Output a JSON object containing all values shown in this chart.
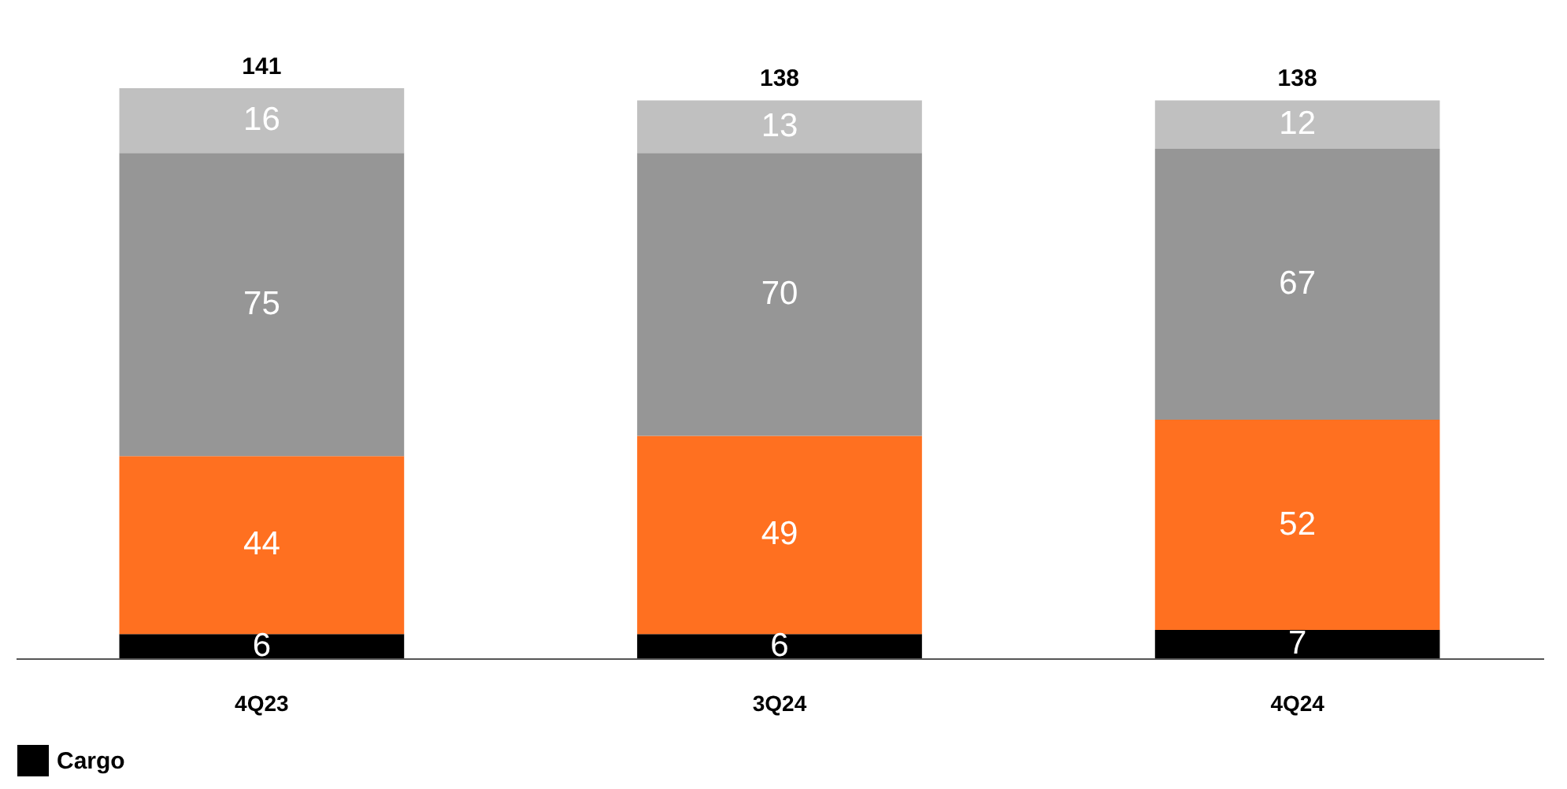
{
  "chart_data": {
    "type": "bar",
    "stacked": true,
    "categories": [
      "4Q23",
      "3Q24",
      "4Q24"
    ],
    "series": [
      {
        "name": "Cargo",
        "color": "#000000",
        "values": [
          6,
          6,
          7
        ]
      },
      {
        "color": "#ff7020",
        "values": [
          44,
          49,
          52
        ]
      },
      {
        "color": "#969696",
        "values": [
          75,
          70,
          67
        ]
      },
      {
        "color": "#c0c0c0",
        "values": [
          16,
          13,
          12
        ]
      }
    ],
    "data_labels": true,
    "totals": [
      "141",
      "138",
      "138"
    ],
    "legend": "bottom",
    "grid": false
  }
}
